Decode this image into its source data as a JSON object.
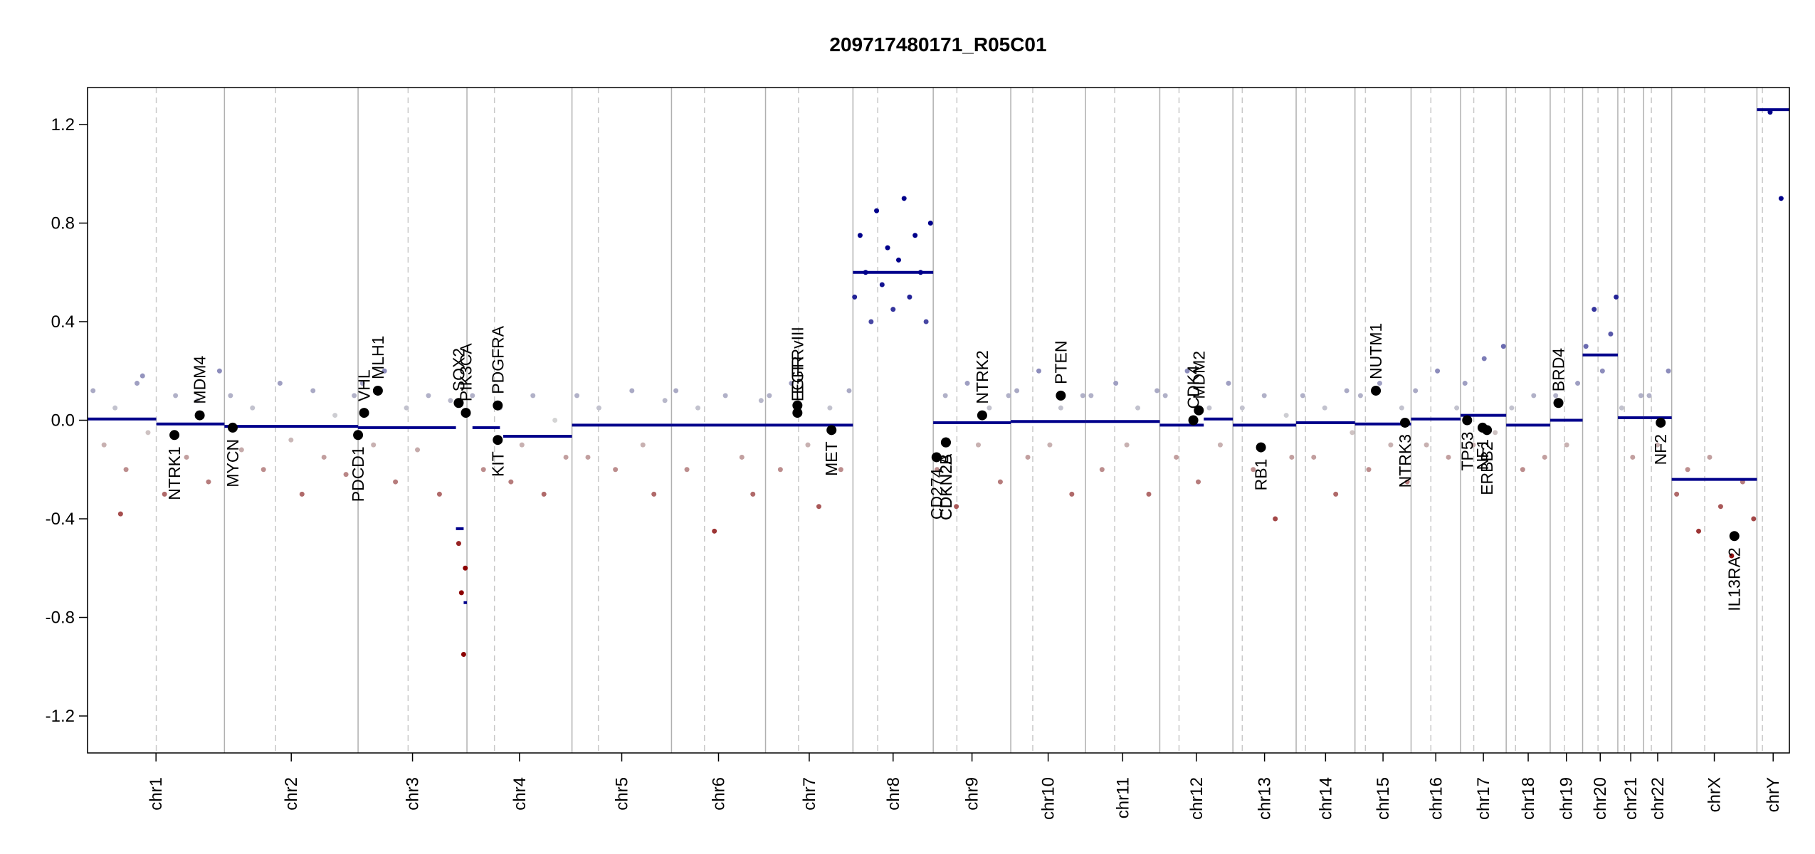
{
  "chart_data": {
    "type": "copy-number",
    "title": "209717480171_R05C01",
    "xlim": [
      0,
      3095
    ],
    "ylim": [
      -1.35,
      1.35
    ],
    "yticks": [
      -1.2,
      -0.8,
      -0.4,
      {
        "value": 0,
        "label": "0.0"
      },
      0.4,
      0.8,
      1.2
    ],
    "chromosomes": [
      "chr1",
      "chr2",
      "chr3",
      "chr4",
      "chr5",
      "chr6",
      "chr7",
      "chr8",
      "chr9",
      "chr10",
      "chr11",
      "chr12",
      "chr13",
      "chr14",
      "chr15",
      "chr16",
      "chr17",
      "chr18",
      "chr19",
      "chr20",
      "chr21",
      "chr22",
      "chrX",
      "chrY"
    ],
    "boundaries": [
      0,
      249,
      492,
      690,
      881,
      1062,
      1233,
      1392,
      1538,
      1679,
      1815,
      1950,
      2083,
      2198,
      2305,
      2407,
      2497,
      2580,
      2660,
      2719,
      2783,
      2830,
      2881,
      3036,
      3095
    ],
    "centromeres": [
      125,
      342,
      583,
      740,
      929,
      1122,
      1293,
      1437,
      1581,
      1719,
      1868,
      1985,
      2100,
      2215,
      2324,
      2443,
      2521,
      2597,
      2686,
      2747,
      2795,
      2844,
      2941,
      3046
    ],
    "gain_color": "#00008b",
    "loss_color": "#8b0000",
    "neutral_color": "#d4d4d4",
    "segment_color": "#00008b",
    "gene_color": "#000000",
    "x": [
      10,
      30,
      50,
      70,
      90,
      110,
      140,
      160,
      180,
      200,
      220,
      240,
      60,
      100,
      260,
      280,
      300,
      320,
      350,
      370,
      390,
      410,
      430,
      450,
      470,
      485,
      500,
      520,
      540,
      560,
      580,
      600,
      620,
      640,
      660,
      675,
      680,
      684,
      687,
      700,
      720,
      750,
      770,
      790,
      810,
      830,
      850,
      870,
      890,
      910,
      930,
      960,
      990,
      1010,
      1030,
      1050,
      1070,
      1090,
      1110,
      1140,
      1160,
      1190,
      1210,
      1225,
      1240,
      1260,
      1280,
      1310,
      1330,
      1350,
      1370,
      1385,
      1395,
      1405,
      1415,
      1425,
      1435,
      1445,
      1455,
      1465,
      1475,
      1485,
      1495,
      1505,
      1515,
      1525,
      1533,
      1545,
      1560,
      1580,
      1600,
      1620,
      1640,
      1660,
      1675,
      1690,
      1710,
      1730,
      1750,
      1770,
      1790,
      1810,
      1825,
      1845,
      1870,
      1890,
      1910,
      1930,
      1945,
      1960,
      1980,
      2000,
      2020,
      2040,
      2060,
      2075,
      2100,
      2120,
      2140,
      2160,
      2180,
      2190,
      2210,
      2230,
      2250,
      2270,
      2290,
      2300,
      2315,
      2330,
      2350,
      2370,
      2390,
      2400,
      2415,
      2435,
      2455,
      2475,
      2490,
      2505,
      2520,
      2540,
      2560,
      2575,
      2590,
      2610,
      2630,
      2650,
      2670,
      2690,
      2710,
      2725,
      2740,
      2755,
      2770,
      2780,
      2790,
      2810,
      2825,
      2840,
      2855,
      2875,
      2890,
      2910,
      2930,
      2950,
      2970,
      2990,
      3010,
      3030,
      3060,
      3080
    ],
    "values": [
      0.12,
      -0.1,
      0.05,
      -0.2,
      0.15,
      -0.05,
      -0.3,
      0.1,
      -0.15,
      0.08,
      -0.25,
      0.2,
      -0.38,
      0.18,
      0.1,
      -0.12,
      0.05,
      -0.2,
      0.15,
      -0.08,
      -0.3,
      0.12,
      -0.15,
      0.02,
      -0.22,
      0.1,
      0.15,
      -0.1,
      0.2,
      -0.25,
      0.05,
      -0.12,
      0.1,
      -0.3,
      0.08,
      -0.5,
      -0.7,
      -0.95,
      -0.6,
      0.1,
      -0.2,
      0.05,
      -0.25,
      -0.1,
      0.1,
      -0.3,
      0.0,
      -0.15,
      0.1,
      -0.15,
      0.05,
      -0.2,
      0.12,
      -0.1,
      -0.3,
      0.08,
      0.12,
      -0.2,
      0.05,
      -0.45,
      0.1,
      -0.15,
      -0.3,
      0.08,
      0.1,
      -0.2,
      0.15,
      -0.1,
      -0.35,
      0.05,
      -0.2,
      0.12,
      0.5,
      0.75,
      0.6,
      0.4,
      0.85,
      0.55,
      0.7,
      0.45,
      0.65,
      0.9,
      0.5,
      0.75,
      0.6,
      0.4,
      0.8,
      -0.2,
      0.1,
      -0.35,
      0.15,
      -0.1,
      0.05,
      -0.25,
      0.1,
      0.12,
      -0.15,
      0.2,
      -0.1,
      0.05,
      -0.3,
      0.1,
      0.1,
      -0.2,
      0.15,
      -0.1,
      0.05,
      -0.3,
      0.12,
      0.1,
      -0.15,
      0.2,
      -0.25,
      0.05,
      -0.1,
      0.15,
      0.05,
      -0.2,
      0.1,
      -0.4,
      0.02,
      -0.15,
      0.1,
      -0.15,
      0.05,
      -0.3,
      0.12,
      -0.05,
      0.1,
      -0.2,
      0.15,
      -0.1,
      0.05,
      -0.25,
      0.12,
      -0.1,
      0.2,
      -0.15,
      0.05,
      0.15,
      -0.1,
      0.25,
      -0.05,
      0.3,
      0.05,
      -0.2,
      0.1,
      -0.15,
      0.1,
      -0.1,
      0.15,
      0.3,
      0.45,
      0.2,
      0.35,
      0.5,
      0.05,
      -0.15,
      0.1,
      0.1,
      -0.1,
      0.2,
      -0.3,
      -0.2,
      -0.45,
      -0.15,
      -0.35,
      -0.55,
      -0.25,
      -0.4,
      1.25,
      0.9
    ],
    "segments": [
      {
        "start": 0,
        "end": 125,
        "value": 0.005
      },
      {
        "start": 125,
        "end": 249,
        "value": -0.015
      },
      {
        "start": 249,
        "end": 492,
        "value": -0.025
      },
      {
        "start": 492,
        "end": 670,
        "value": -0.03
      },
      {
        "start": 670,
        "end": 684,
        "value": -0.44
      },
      {
        "start": 684,
        "end": 690,
        "value": -0.74
      },
      {
        "start": 700,
        "end": 750,
        "value": -0.03
      },
      {
        "start": 756,
        "end": 881,
        "value": -0.065
      },
      {
        "start": 881,
        "end": 1062,
        "value": -0.02
      },
      {
        "start": 1062,
        "end": 1233,
        "value": -0.02
      },
      {
        "start": 1233,
        "end": 1392,
        "value": -0.02
      },
      {
        "start": 1392,
        "end": 1538,
        "value": 0.6
      },
      {
        "start": 1538,
        "end": 1679,
        "value": -0.01
      },
      {
        "start": 1679,
        "end": 1815,
        "value": -0.005
      },
      {
        "start": 1815,
        "end": 1950,
        "value": -0.005
      },
      {
        "start": 1950,
        "end": 2030,
        "value": -0.02
      },
      {
        "start": 2030,
        "end": 2083,
        "value": 0.005
      },
      {
        "start": 2083,
        "end": 2198,
        "value": -0.02
      },
      {
        "start": 2198,
        "end": 2305,
        "value": -0.01
      },
      {
        "start": 2305,
        "end": 2407,
        "value": -0.015
      },
      {
        "start": 2407,
        "end": 2497,
        "value": 0.005
      },
      {
        "start": 2497,
        "end": 2580,
        "value": 0.02
      },
      {
        "start": 2580,
        "end": 2660,
        "value": -0.02
      },
      {
        "start": 2660,
        "end": 2719,
        "value": 0.0
      },
      {
        "start": 2719,
        "end": 2783,
        "value": 0.265
      },
      {
        "start": 2783,
        "end": 2830,
        "value": 0.01
      },
      {
        "start": 2830,
        "end": 2881,
        "value": 0.01
      },
      {
        "start": 2881,
        "end": 3036,
        "value": -0.24
      },
      {
        "start": 3036,
        "end": 3095,
        "value": 1.26
      }
    ],
    "genes": [
      {
        "name": "NTRK1",
        "x": 158,
        "value": -0.06,
        "label_side": "below"
      },
      {
        "name": "MDM4",
        "x": 204,
        "value": 0.02,
        "label_side": "above"
      },
      {
        "name": "MYCN",
        "x": 264,
        "value": -0.03,
        "label_side": "below"
      },
      {
        "name": "PDCD1",
        "x": 492,
        "value": -0.06,
        "label_side": "below"
      },
      {
        "name": "VHL",
        "x": 503,
        "value": 0.03,
        "label_side": "above"
      },
      {
        "name": "MLH1",
        "x": 528,
        "value": 0.12,
        "label_side": "above"
      },
      {
        "name": "SOX2",
        "x": 675,
        "value": 0.07,
        "label_side": "above"
      },
      {
        "name": "PIK3CA",
        "x": 688,
        "value": 0.03,
        "label_side": "above"
      },
      {
        "name": "PDGFRA",
        "x": 746,
        "value": 0.06,
        "label_side": "above"
      },
      {
        "name": "KIT",
        "x": 746,
        "value": -0.08,
        "label_side": "below"
      },
      {
        "name": "EGFR",
        "x": 1291,
        "value": 0.03,
        "label_side": "above"
      },
      {
        "name": "EGFRvIII",
        "x": 1291,
        "value": 0.06,
        "label_side": "above"
      },
      {
        "name": "MET",
        "x": 1353,
        "value": -0.04,
        "label_side": "below"
      },
      {
        "name": "CD274",
        "x": 1544,
        "value": -0.15,
        "label_side": "below"
      },
      {
        "name": "CDKN2A",
        "x": 1561,
        "value": -0.09,
        "label_side": "below"
      },
      {
        "name": "CDKN2B",
        "x": 1561,
        "value": -0.09,
        "label_side": "below"
      },
      {
        "name": "NTRK2",
        "x": 1627,
        "value": 0.02,
        "label_side": "above"
      },
      {
        "name": "PTEN",
        "x": 1770,
        "value": 0.1,
        "label_side": "above"
      },
      {
        "name": "CDK4",
        "x": 2011,
        "value": 0.0,
        "label_side": "above"
      },
      {
        "name": "MDM2",
        "x": 2021,
        "value": 0.04,
        "label_side": "above"
      },
      {
        "name": "RB1",
        "x": 2134,
        "value": -0.11,
        "label_side": "below"
      },
      {
        "name": "NUTM1",
        "x": 2343,
        "value": 0.12,
        "label_side": "above"
      },
      {
        "name": "NTRK3",
        "x": 2396,
        "value": -0.01,
        "label_side": "below"
      },
      {
        "name": "TP53",
        "x": 2509,
        "value": 0.0,
        "label_side": "below"
      },
      {
        "name": "NF1",
        "x": 2537,
        "value": -0.03,
        "label_side": "below"
      },
      {
        "name": "ERBB2",
        "x": 2545,
        "value": -0.04,
        "label_side": "below"
      },
      {
        "name": "BRD4",
        "x": 2675,
        "value": 0.07,
        "label_side": "above"
      },
      {
        "name": "NF2",
        "x": 2861,
        "value": -0.01,
        "label_side": "below"
      },
      {
        "name": "IL13RA2",
        "x": 2995,
        "value": -0.47,
        "label_side": "below"
      }
    ]
  }
}
